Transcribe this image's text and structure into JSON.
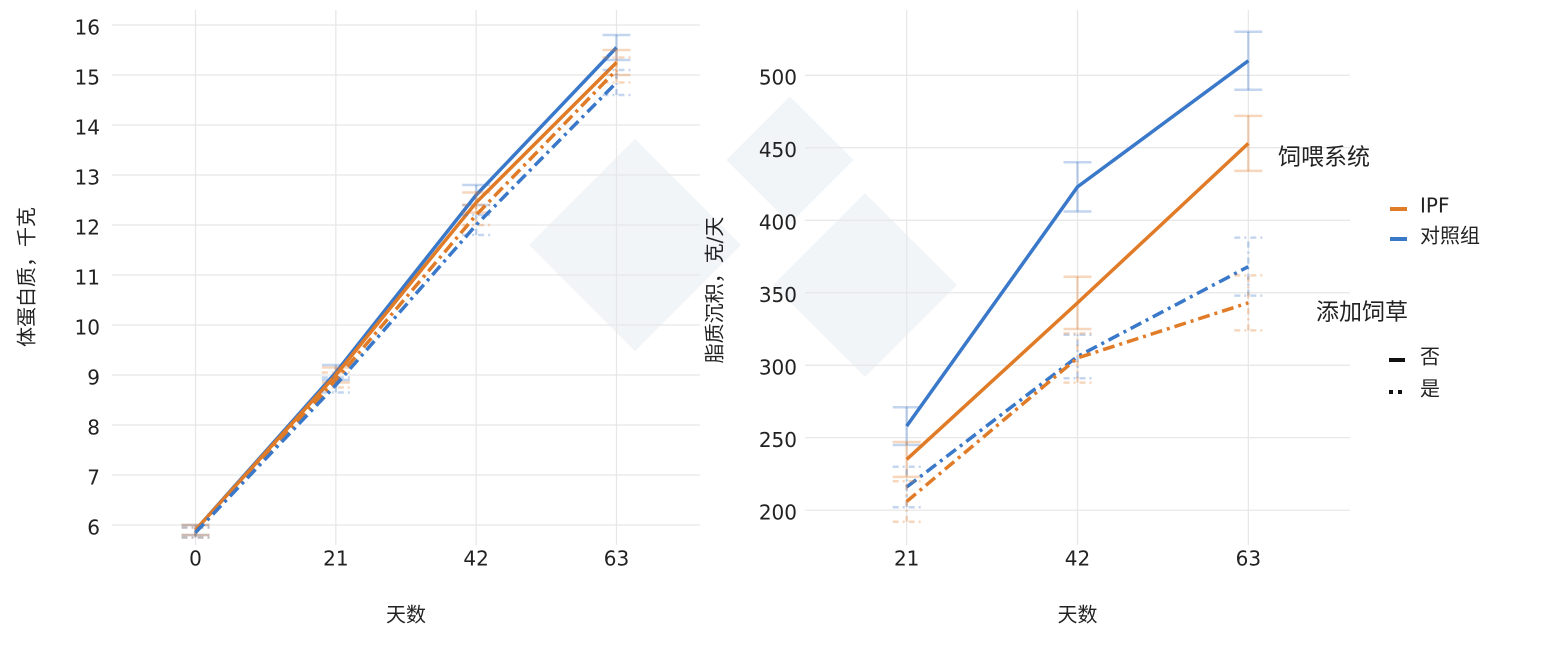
{
  "chart_data": [
    {
      "type": "line",
      "x_label": "天数",
      "y_label": "体蛋白质，千克",
      "x": [
        0,
        21,
        42,
        63
      ],
      "xlim": [
        -12.5,
        75.5
      ],
      "xticks": [
        0,
        21,
        42,
        63
      ],
      "ylim": [
        5.6,
        16.3
      ],
      "yticks": [
        6,
        7,
        8,
        9,
        10,
        11,
        12,
        13,
        14,
        15,
        16
      ],
      "grid": true,
      "series": [
        {
          "color": "#3a78c9",
          "dash": "solid",
          "values": [
            5.9,
            9.05,
            12.6,
            15.55
          ],
          "errors": [
            0.1,
            0.15,
            0.2,
            0.25
          ]
        },
        {
          "color": "#e07b28",
          "dash": "solid",
          "values": [
            5.9,
            9.0,
            12.45,
            15.25
          ],
          "errors": [
            0.1,
            0.15,
            0.2,
            0.25
          ]
        },
        {
          "color": "#e07b28",
          "dash": "dashdot",
          "values": [
            5.85,
            8.9,
            12.2,
            15.1
          ],
          "errors": [
            0.1,
            0.15,
            0.2,
            0.25
          ]
        },
        {
          "color": "#3a78c9",
          "dash": "dashdot",
          "values": [
            5.85,
            8.8,
            12.0,
            14.85
          ],
          "errors": [
            0.1,
            0.15,
            0.2,
            0.25
          ]
        }
      ]
    },
    {
      "type": "line",
      "x_label": "天数",
      "y_label": "脂质沉积，克/天",
      "x": [
        21,
        42,
        63
      ],
      "xlim": [
        8.5,
        75.5
      ],
      "xticks": [
        21,
        42,
        63
      ],
      "ylim": [
        176,
        545
      ],
      "yticks": [
        200,
        250,
        300,
        350,
        400,
        450,
        500
      ],
      "grid": true,
      "series": [
        {
          "color": "#3a78c9",
          "dash": "solid",
          "values": [
            258,
            423,
            510
          ],
          "errors": [
            13,
            17,
            20
          ]
        },
        {
          "color": "#e07b28",
          "dash": "solid",
          "values": [
            235,
            343,
            453
          ],
          "errors": [
            12,
            18,
            19
          ]
        },
        {
          "color": "#3a78c9",
          "dash": "dashdot",
          "values": [
            216,
            306,
            368
          ],
          "errors": [
            14,
            15,
            20
          ]
        },
        {
          "color": "#e07b28",
          "dash": "dashdot",
          "values": [
            206,
            305,
            343
          ],
          "errors": [
            14,
            17,
            19
          ]
        }
      ],
      "legend": {
        "color_title": "饲喂系统",
        "color_items": [
          "IPF",
          "对照组"
        ],
        "colors": [
          "#e07b28",
          "#3a78c9"
        ],
        "dash_title": "添加饲草",
        "dash_items": [
          "否",
          "是"
        ],
        "dashes": [
          "solid",
          "dashdot"
        ]
      }
    }
  ]
}
